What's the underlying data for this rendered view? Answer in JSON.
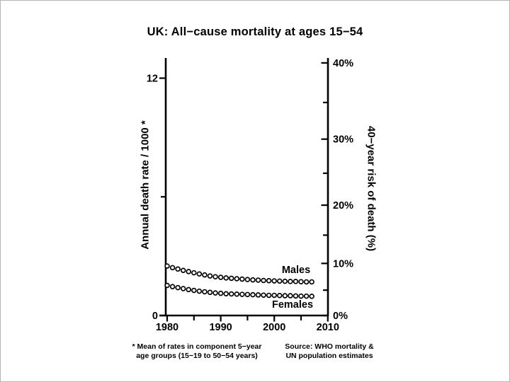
{
  "title": "UK: All−cause mortality at ages 15−54",
  "footnotes": {
    "left_line1": "* Mean of rates in component 5−year",
    "left_line2": "age groups (15−19 to 50−54 years)",
    "right_line1": "Source: WHO mortality &",
    "right_line2": "UN population estimates"
  },
  "chart_data": {
    "type": "scatter",
    "title": "UK: All−cause mortality at ages 15−54",
    "marker": "open-circle",
    "colors": {
      "foreground": "#000000",
      "background": "#ffffff"
    },
    "x": [
      1980,
      1981,
      1982,
      1983,
      1984,
      1985,
      1986,
      1987,
      1988,
      1989,
      1990,
      1991,
      1992,
      1993,
      1994,
      1995,
      1996,
      1997,
      1998,
      1999,
      2000,
      2001,
      2002,
      2003,
      2004,
      2005,
      2006,
      2007
    ],
    "series": [
      {
        "name": "Males",
        "values": [
          2.5,
          2.42,
          2.35,
          2.28,
          2.22,
          2.16,
          2.1,
          2.05,
          2.0,
          1.96,
          1.93,
          1.9,
          1.88,
          1.86,
          1.84,
          1.82,
          1.8,
          1.79,
          1.77,
          1.76,
          1.75,
          1.74,
          1.73,
          1.72,
          1.72,
          1.71,
          1.7,
          1.7
        ]
      },
      {
        "name": "Females",
        "values": [
          1.52,
          1.46,
          1.41,
          1.36,
          1.31,
          1.27,
          1.23,
          1.2,
          1.17,
          1.14,
          1.12,
          1.1,
          1.09,
          1.08,
          1.07,
          1.06,
          1.05,
          1.04,
          1.03,
          1.02,
          1.02,
          1.01,
          1.0,
          1.0,
          0.99,
          0.98,
          0.98,
          0.97
        ]
      }
    ],
    "left_axis": {
      "label": "Annual death rate / 1000 *",
      "range": [
        0,
        12
      ],
      "ticks": [
        0,
        6,
        12
      ],
      "labeled_ticks": [
        0,
        12
      ]
    },
    "right_axis": {
      "label": "40−year risk of death (%)",
      "unit": "%",
      "ticks_pct": [
        0,
        5,
        10,
        15,
        20,
        25,
        30,
        35,
        40
      ],
      "labeled_ticks_pct": [
        0,
        10,
        20,
        30,
        40
      ],
      "transform": "risk = 1 − exp(−40 × rate / 1000)"
    },
    "x_axis": {
      "range": [
        1980,
        2010
      ],
      "ticks": [
        1980,
        1985,
        1990,
        1995,
        2000,
        2005,
        2010
      ],
      "labeled_ticks": [
        1980,
        1990,
        2000,
        2010
      ]
    },
    "legend": {
      "position": "inline-curve-labels"
    },
    "grid": false
  }
}
